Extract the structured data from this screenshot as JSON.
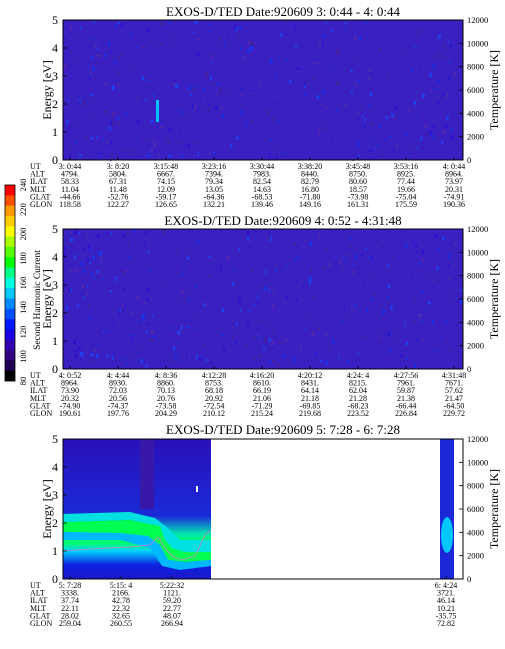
{
  "colorbar": {
    "label": "Second Harmonic Current",
    "ticks": [
      "240",
      "220",
      "200",
      "180",
      "160",
      "140",
      "120",
      "100",
      "80"
    ],
    "colors": [
      "#ff0000",
      "#ff5000",
      "#ff9900",
      "#ffcc00",
      "#ffff00",
      "#aaff00",
      "#55ff00",
      "#00ff00",
      "#00ff88",
      "#00ffdd",
      "#00c8ff",
      "#008cff",
      "#0050ff",
      "#0018ff",
      "#1800e0",
      "#3000b0",
      "#300080",
      "#200050",
      "#000000"
    ]
  },
  "rowlabels": [
    "UT",
    "ALT",
    "ILAT",
    "MLT",
    "GLAT",
    "GLON"
  ],
  "chart_data": [
    {
      "type": "heatmap",
      "title": "EXOS-D/TED   Date:920609  3: 0:44 - 4: 0:44",
      "ylabel": "Energy [eV]",
      "ylabel2": "Temperature [K]",
      "ylim": [
        0,
        5
      ],
      "y2lim": [
        0,
        12000
      ],
      "yticks": [
        "0",
        "1",
        "2",
        "3",
        "4",
        "5"
      ],
      "y2ticks": [
        "0",
        "2000",
        "4000",
        "6000",
        "8000",
        "10000",
        "12000"
      ],
      "columns": [
        [
          "3: 0:44",
          "4794.",
          "58.33",
          "11.04",
          "-44.66",
          "118.58"
        ],
        [
          "3: 8:20",
          "5804.",
          "67.31",
          "11.48",
          "-52.76",
          "122.27"
        ],
        [
          "3:15:48",
          "6667.",
          "74.15",
          "12.09",
          "-59.17",
          "126.65"
        ],
        [
          "3:23:16",
          "7394.",
          "79.34",
          "13.05",
          "-64.36",
          "132.21"
        ],
        [
          "3:30:44",
          "7983.",
          "82.54",
          "14.63",
          "-68.53",
          "139.46"
        ],
        [
          "3:38:20",
          "8440.",
          "82.79",
          "16.80",
          "-71.80",
          "149.16"
        ],
        [
          "3:45:48",
          "8750.",
          "80.60",
          "18.57",
          "-73.98",
          "161.31"
        ],
        [
          "3:53:16",
          "8925.",
          "77.44",
          "19.66",
          "-75.04",
          "175.59"
        ],
        [
          "4: 0:44",
          "8964.",
          "73.97",
          "20.31",
          "-74.91",
          "190.36"
        ]
      ]
    },
    {
      "type": "heatmap",
      "title": "EXOS-D/TED   Date:920609  4: 0:52 - 4:31:48",
      "ylabel": "Energy [eV]",
      "ylabel2": "Temperature [K]",
      "ylim": [
        0,
        5
      ],
      "y2lim": [
        0,
        12000
      ],
      "yticks": [
        "0",
        "1",
        "2",
        "3",
        "4",
        "5"
      ],
      "y2ticks": [
        "0",
        "2000",
        "4000",
        "6000",
        "8000",
        "10000",
        "12000"
      ],
      "columns": [
        [
          "4: 0:52",
          "8964.",
          "73.90",
          "20.32",
          "-74.90",
          "190.61"
        ],
        [
          "4: 4:44",
          "8930.",
          "72.03",
          "20.56",
          "-74.37",
          "197.76"
        ],
        [
          "4: 8:36",
          "8860.",
          "70.13",
          "20.76",
          "-73.58",
          "204.29"
        ],
        [
          "4:12:28",
          "8753.",
          "68.18",
          "20.92",
          "-72.54",
          "210.12"
        ],
        [
          "4:16:20",
          "8610.",
          "66.19",
          "21.06",
          "-71.29",
          "215.24"
        ],
        [
          "4:20:12",
          "8431.",
          "64.14",
          "21.18",
          "-69.85",
          "219.68"
        ],
        [
          "4:24: 4",
          "8215.",
          "62.04",
          "21.28",
          "-68.23",
          "223.52"
        ],
        [
          "4:27:56",
          "7961.",
          "59.87",
          "21.38",
          "-66.44",
          "226.84"
        ],
        [
          "4:31:48",
          "7671.",
          "57.62",
          "21.47",
          "-64.50",
          "229.72"
        ]
      ]
    },
    {
      "type": "heatmap",
      "title": "EXOS-D/TED   Date:920609  5: 7:28 - 6: 7:28",
      "ylabel": "Energy [eV]",
      "ylabel2": "Temperature [K]",
      "ylim": [
        0,
        5
      ],
      "y2lim": [
        0,
        12000
      ],
      "yticks": [
        "0",
        "1",
        "2",
        "3",
        "4",
        "5"
      ],
      "y2ticks": [
        "0",
        "2000",
        "4000",
        "6000",
        "8000",
        "10000",
        "12000"
      ],
      "columns": [
        [
          "5: 7:28",
          "3338.",
          "37.74",
          "22.11",
          "28.02",
          "259.04"
        ],
        [
          "5:15: 4",
          "2166.",
          "42.78",
          "22.32",
          "32.65",
          "260.55"
        ],
        [
          "5:22:32",
          "1121.",
          "59.20",
          "22.77",
          "48.07",
          "266.94"
        ],
        [
          "6: 4:24",
          "3721.",
          "46.14",
          "10.21",
          "-35.75",
          "72.82"
        ]
      ]
    }
  ]
}
